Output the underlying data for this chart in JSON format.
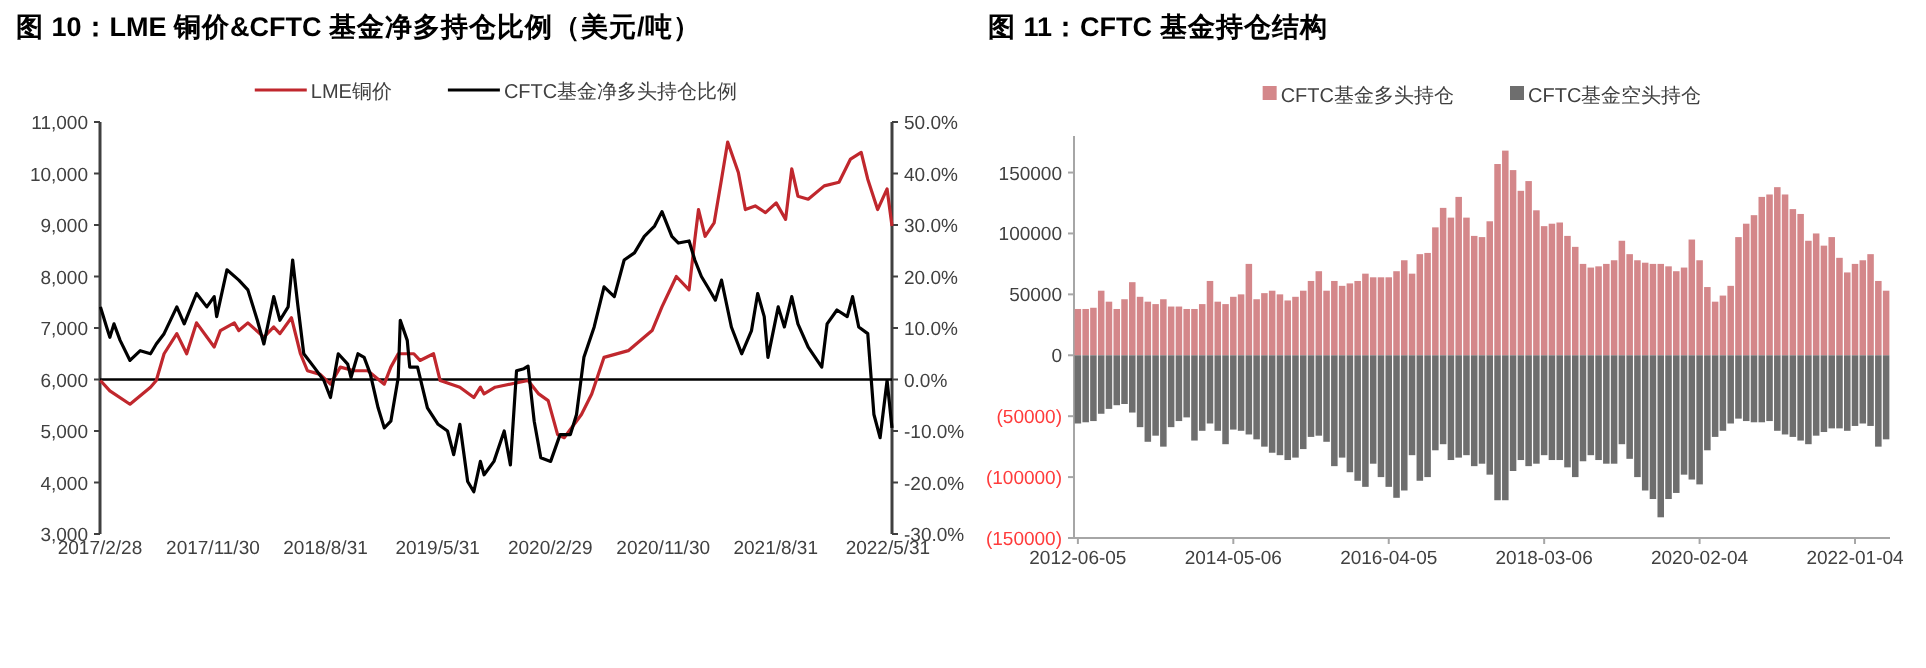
{
  "chart_data": [
    {
      "type": "line",
      "title": "图 10：LME 铜价&CFTC 基金净多持仓比例（美元/吨）",
      "legend": "top",
      "xlim": [
        "2017-02-28",
        "2022-06-10"
      ],
      "xticks": [
        {
          "value": "2017-02-28",
          "label": "2017/2/28"
        },
        {
          "value": "2017-11-30",
          "label": "2017/11/30"
        },
        {
          "value": "2018-08-31",
          "label": "2018/8/31"
        },
        {
          "value": "2019-05-31",
          "label": "2019/5/31"
        },
        {
          "value": "2020-02-29",
          "label": "2020/2/29"
        },
        {
          "value": "2020-11-30",
          "label": "2020/11/30"
        },
        {
          "value": "2021-08-31",
          "label": "2021/8/31"
        },
        {
          "value": "2022-05-31",
          "label": "2022/5/31"
        }
      ],
      "ylim": [
        3000,
        11000
      ],
      "yticks": [
        {
          "value": 3000,
          "label": "3,000"
        },
        {
          "value": 4000,
          "label": "4,000"
        },
        {
          "value": 5000,
          "label": "5,000"
        },
        {
          "value": 6000,
          "label": "6,000"
        },
        {
          "value": 7000,
          "label": "7,000"
        },
        {
          "value": 8000,
          "label": "8,000"
        },
        {
          "value": 9000,
          "label": "9,000"
        },
        {
          "value": 10000,
          "label": "10,000"
        },
        {
          "value": 11000,
          "label": "11,000"
        }
      ],
      "y2lim": [
        -30,
        50
      ],
      "y2ticks": [
        {
          "value": -30,
          "label": "-30.0%"
        },
        {
          "value": -20,
          "label": "-20.0%"
        },
        {
          "value": -10,
          "label": "-10.0%"
        },
        {
          "value": 0,
          "label": "0.0%"
        },
        {
          "value": 10,
          "label": "10.0%"
        },
        {
          "value": 20,
          "label": "20.0%"
        },
        {
          "value": 30,
          "label": "30.0%"
        },
        {
          "value": 40,
          "label": "40.0%"
        },
        {
          "value": 50,
          "label": "50.0%"
        }
      ],
      "ref_lines": [
        {
          "axis": "y2",
          "value": 0,
          "color": "#000000"
        }
      ],
      "series": [
        {
          "name": "LME铜价",
          "color": "#c0272d",
          "x": [
            "2017-03-01",
            "2017-03-24",
            "2017-05-12",
            "2017-07-01",
            "2017-07-15",
            "2017-08-03",
            "2017-09-03",
            "2017-09-27",
            "2017-10-21",
            "2017-12-03",
            "2017-12-18",
            "2018-01-21",
            "2018-02-01",
            "2018-02-23",
            "2018-04-03",
            "2018-04-27",
            "2018-05-12",
            "2018-06-09",
            "2018-07-01",
            "2018-07-18",
            "2018-08-18",
            "2018-09-12",
            "2018-10-06",
            "2018-11-09",
            "2018-12-12",
            "2019-01-21",
            "2019-02-06",
            "2019-02-24",
            "2019-04-03",
            "2019-04-18",
            "2019-05-21",
            "2019-06-06",
            "2019-07-24",
            "2019-08-27",
            "2019-09-12",
            "2019-09-21",
            "2019-10-18",
            "2020-01-06",
            "2020-02-01",
            "2020-02-24",
            "2020-03-18",
            "2020-04-03",
            "2020-05-15",
            "2020-06-09",
            "2020-07-09",
            "2020-09-06",
            "2020-11-03",
            "2020-11-27",
            "2021-01-01",
            "2021-02-01",
            "2021-02-15",
            "2021-02-24",
            "2021-03-12",
            "2021-04-03",
            "2021-04-21",
            "2021-05-06",
            "2021-06-01",
            "2021-06-18",
            "2021-07-12",
            "2021-08-06",
            "2021-09-01",
            "2021-09-24",
            "2021-10-09",
            "2021-10-24",
            "2021-11-18",
            "2021-12-27",
            "2022-02-01",
            "2022-03-01",
            "2022-03-27",
            "2022-04-12",
            "2022-05-06",
            "2022-05-29",
            "2022-06-10"
          ],
          "values": [
            5980,
            5780,
            5520,
            5850,
            5980,
            6500,
            6890,
            6500,
            7100,
            6630,
            6950,
            7100,
            6950,
            7100,
            6820,
            7020,
            6890,
            7200,
            6500,
            6170,
            6100,
            5910,
            6240,
            6170,
            6170,
            5910,
            6240,
            6500,
            6500,
            6370,
            6500,
            5980,
            5850,
            5650,
            5850,
            5720,
            5850,
            5980,
            5720,
            5590,
            4930,
            4870,
            5320,
            5720,
            6430,
            6560,
            6950,
            7410,
            8000,
            7740,
            8720,
            9300,
            8780,
            9040,
            9890,
            10610,
            10020,
            9300,
            9370,
            9240,
            9430,
            9110,
            10090,
            9560,
            9500,
            9760,
            9830,
            10280,
            10410,
            9890,
            9300,
            9700,
            8980
          ]
        },
        {
          "name": "CFTC基金净多头持仓比例",
          "color": "#000000",
          "axis": "y2",
          "x": [
            "2017-03-01",
            "2017-03-16",
            "2017-03-24",
            "2017-04-03",
            "2017-04-18",
            "2017-05-12",
            "2017-06-06",
            "2017-07-01",
            "2017-07-15",
            "2017-08-03",
            "2017-09-03",
            "2017-09-21",
            "2017-10-21",
            "2017-11-15",
            "2017-12-03",
            "2017-12-09",
            "2018-01-03",
            "2018-02-01",
            "2018-02-23",
            "2018-03-18",
            "2018-04-03",
            "2018-04-27",
            "2018-05-12",
            "2018-06-01",
            "2018-06-12",
            "2018-06-24",
            "2018-07-09",
            "2018-08-03",
            "2018-08-27",
            "2018-09-12",
            "2018-10-01",
            "2018-10-24",
            "2018-11-01",
            "2018-11-18",
            "2018-12-03",
            "2018-12-18",
            "2019-01-06",
            "2019-01-21",
            "2019-02-06",
            "2019-02-24",
            "2019-03-01",
            "2019-03-18",
            "2019-03-24",
            "2019-04-12",
            "2019-05-06",
            "2019-06-01",
            "2019-06-24",
            "2019-07-09",
            "2019-07-24",
            "2019-08-12",
            "2019-08-27",
            "2019-09-12",
            "2019-09-21",
            "2019-10-15",
            "2019-11-09",
            "2019-11-24",
            "2019-12-09",
            "2019-12-27",
            "2020-01-06",
            "2020-01-21",
            "2020-02-06",
            "2020-03-01",
            "2020-03-24",
            "2020-04-18",
            "2020-05-03",
            "2020-05-21",
            "2020-06-15",
            "2020-07-09",
            "2020-08-03",
            "2020-08-27",
            "2020-09-21",
            "2020-10-15",
            "2020-11-09",
            "2020-11-27",
            "2020-12-21",
            "2021-01-06",
            "2021-02-01",
            "2021-02-15",
            "2021-03-03",
            "2021-03-18",
            "2021-04-06",
            "2021-04-21",
            "2021-05-15",
            "2021-06-09",
            "2021-07-03",
            "2021-07-18",
            "2021-08-03",
            "2021-08-12",
            "2021-09-06",
            "2021-09-21",
            "2021-10-09",
            "2021-10-24",
            "2021-11-18",
            "2021-12-21",
            "2022-01-03",
            "2022-01-27",
            "2022-02-21",
            "2022-03-06",
            "2022-03-21",
            "2022-04-12",
            "2022-04-27",
            "2022-05-12",
            "2022-05-29",
            "2022-06-10"
          ],
          "values": [
            14.1,
            10.2,
            8.2,
            10.8,
            7.6,
            3.7,
            5.6,
            5.0,
            6.9,
            8.9,
            14.1,
            10.8,
            16.7,
            14.1,
            16.1,
            12.2,
            21.3,
            19.3,
            17.4,
            11.5,
            6.9,
            16.1,
            11.5,
            14.1,
            23.2,
            14.8,
            5.0,
            2.4,
            -0.2,
            -3.5,
            5.0,
            3.0,
            0.4,
            5.0,
            4.3,
            1.1,
            -5.5,
            -9.4,
            -8.1,
            0.4,
            11.5,
            7.6,
            2.4,
            2.4,
            -5.5,
            -8.7,
            -10.0,
            -14.6,
            -8.7,
            -19.8,
            -21.8,
            -15.9,
            -18.5,
            -15.9,
            -10.0,
            -16.6,
            1.7,
            2.1,
            2.6,
            -8.1,
            -15.2,
            -15.9,
            -10.7,
            -10.7,
            -6.8,
            4.3,
            10.2,
            18.0,
            16.1,
            23.2,
            24.6,
            27.8,
            29.8,
            32.6,
            27.8,
            26.5,
            26.9,
            23.2,
            20.0,
            18.0,
            15.4,
            19.3,
            10.2,
            5.0,
            9.5,
            16.7,
            12.2,
            4.3,
            14.1,
            10.2,
            16.1,
            10.8,
            6.3,
            2.4,
            10.8,
            13.5,
            12.2,
            16.1,
            10.2,
            8.9,
            -6.8,
            -11.3,
            -0.2,
            -9.4
          ]
        }
      ]
    },
    {
      "type": "bar",
      "title": "图 11：CFTC 基金持仓结构",
      "legend": "top",
      "stacked": true,
      "categories": [
        "2012-06-05",
        null,
        null,
        null,
        null,
        null,
        null,
        null,
        null,
        null,
        null,
        null,
        null,
        null,
        null,
        null,
        null,
        null,
        null,
        null,
        "2014-05-06",
        null,
        null,
        null,
        null,
        null,
        null,
        null,
        null,
        null,
        null,
        null,
        null,
        null,
        null,
        null,
        null,
        null,
        null,
        null,
        "2016-04-05",
        null,
        null,
        null,
        null,
        null,
        null,
        null,
        null,
        null,
        null,
        null,
        null,
        null,
        null,
        null,
        null,
        null,
        null,
        null,
        "2018-03-06",
        null,
        null,
        null,
        null,
        null,
        null,
        null,
        null,
        null,
        null,
        null,
        null,
        null,
        null,
        null,
        null,
        null,
        null,
        null,
        "2020-02-04",
        null,
        null,
        null,
        null,
        null,
        null,
        null,
        null,
        null,
        null,
        null,
        null,
        null,
        null,
        null,
        null,
        null,
        null,
        null,
        "2022-01-04",
        null,
        null,
        null,
        null
      ],
      "ylim": [
        -150000,
        180000
      ],
      "yticks": [
        {
          "value": -150000,
          "label": "(150000)"
        },
        {
          "value": -100000,
          "label": "(100000)"
        },
        {
          "value": -50000,
          "label": "(50000)"
        },
        0,
        50000,
        100000,
        150000
      ],
      "series": [
        {
          "name": "CFTC基金多头持仓",
          "color": "#d4878a",
          "values": [
            38000,
            38000,
            39000,
            53000,
            44000,
            38000,
            46000,
            60000,
            48000,
            44000,
            42000,
            46000,
            40000,
            40000,
            38000,
            38000,
            42000,
            61000,
            44000,
            42000,
            48000,
            50000,
            75000,
            46000,
            51000,
            53000,
            50000,
            45000,
            48000,
            53000,
            61000,
            69000,
            53000,
            61000,
            57000,
            59000,
            61000,
            67000,
            64000,
            64000,
            64000,
            69000,
            78000,
            67000,
            83000,
            84000,
            105000,
            121000,
            113000,
            130000,
            113000,
            98000,
            97000,
            110000,
            157000,
            168000,
            152000,
            135000,
            143000,
            119000,
            106000,
            108000,
            109000,
            98000,
            89000,
            75000,
            72000,
            73000,
            75000,
            78000,
            94000,
            83000,
            78000,
            76000,
            75000,
            75000,
            73000,
            69000,
            72000,
            95000,
            78000,
            56000,
            44000,
            49000,
            57000,
            97000,
            108000,
            115000,
            130000,
            132000,
            138000,
            132000,
            120000,
            116000,
            94000,
            100000,
            90000,
            97000,
            80000,
            68000,
            75000,
            78000,
            83000,
            61000,
            53000
          ]
        },
        {
          "name": "CFTC基金空头持仓",
          "color": "#6e6e6e",
          "values": [
            -56000,
            -55000,
            -54000,
            -48000,
            -44000,
            -41000,
            -40000,
            -47000,
            -59000,
            -71000,
            -66000,
            -75000,
            -59000,
            -54000,
            -51000,
            -70000,
            -62000,
            -56000,
            -62000,
            -73000,
            -61000,
            -62000,
            -65000,
            -69000,
            -75000,
            -80000,
            -82000,
            -86000,
            -84000,
            -77000,
            -67000,
            -66000,
            -71000,
            -91000,
            -84000,
            -96000,
            -103000,
            -108000,
            -89000,
            -100000,
            -108000,
            -117000,
            -111000,
            -82000,
            -103000,
            -100000,
            -78000,
            -73000,
            -86000,
            -84000,
            -82000,
            -91000,
            -89000,
            -98000,
            -119000,
            -119000,
            -95000,
            -86000,
            -91000,
            -89000,
            -82000,
            -86000,
            -86000,
            -92000,
            -100000,
            -87000,
            -82000,
            -86000,
            -89000,
            -89000,
            -73000,
            -85000,
            -100000,
            -111000,
            -118000,
            -133000,
            -118000,
            -113000,
            -98000,
            -102000,
            -106000,
            -78000,
            -67000,
            -62000,
            -56000,
            -52000,
            -54000,
            -55000,
            -55000,
            -54000,
            -62000,
            -65000,
            -67000,
            -70000,
            -73000,
            -66000,
            -63000,
            -60000,
            -60000,
            -62000,
            -58000,
            -56000,
            -58000,
            -75000,
            -69000
          ]
        }
      ]
    }
  ]
}
